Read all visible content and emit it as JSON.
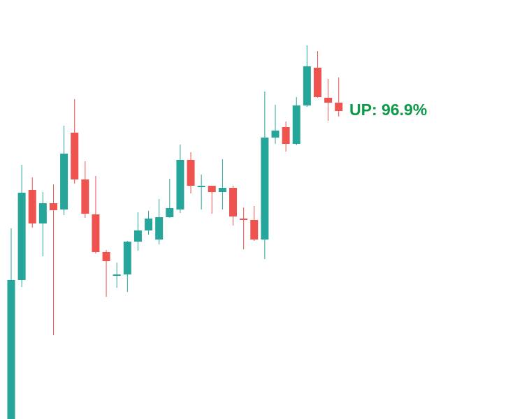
{
  "chart_data": {
    "type": "candlestick",
    "annotation": "UP: 96.9%",
    "annotation_color": "#0b9a4a",
    "up_color": "#26a69a",
    "down_color": "#ef5350",
    "ylim": [
      0,
      600
    ],
    "open": [
      0,
      199,
      328,
      280,
      309,
      300,
      410,
      343,
      293,
      239,
      205,
      207,
      254,
      270,
      257,
      289,
      300,
      371,
      333,
      334,
      325,
      331,
      287,
      285,
      257,
      403,
      418,
      394,
      449,
      503,
      460,
      453
    ],
    "high": [
      273,
      364,
      346,
      325,
      336,
      420,
      458,
      369,
      348,
      242,
      224,
      255,
      296,
      298,
      315,
      344,
      393,
      382,
      350,
      334,
      372,
      334,
      303,
      305,
      469,
      450,
      426,
      461,
      535,
      527,
      487,
      489
    ],
    "low": [
      0,
      189,
      274,
      233,
      120,
      292,
      337,
      288,
      237,
      175,
      188,
      182,
      241,
      264,
      250,
      288,
      295,
      323,
      300,
      294,
      300,
      277,
      243,
      255,
      229,
      394,
      383,
      392,
      447,
      460,
      427,
      433
    ],
    "close": [
      199,
      324,
      280,
      309,
      299,
      380,
      343,
      294,
      239,
      226,
      207,
      254,
      270,
      287,
      289,
      302,
      371,
      334,
      334,
      325,
      331,
      290,
      285,
      257,
      403,
      413,
      394,
      449,
      505,
      461,
      453,
      441
    ]
  }
}
